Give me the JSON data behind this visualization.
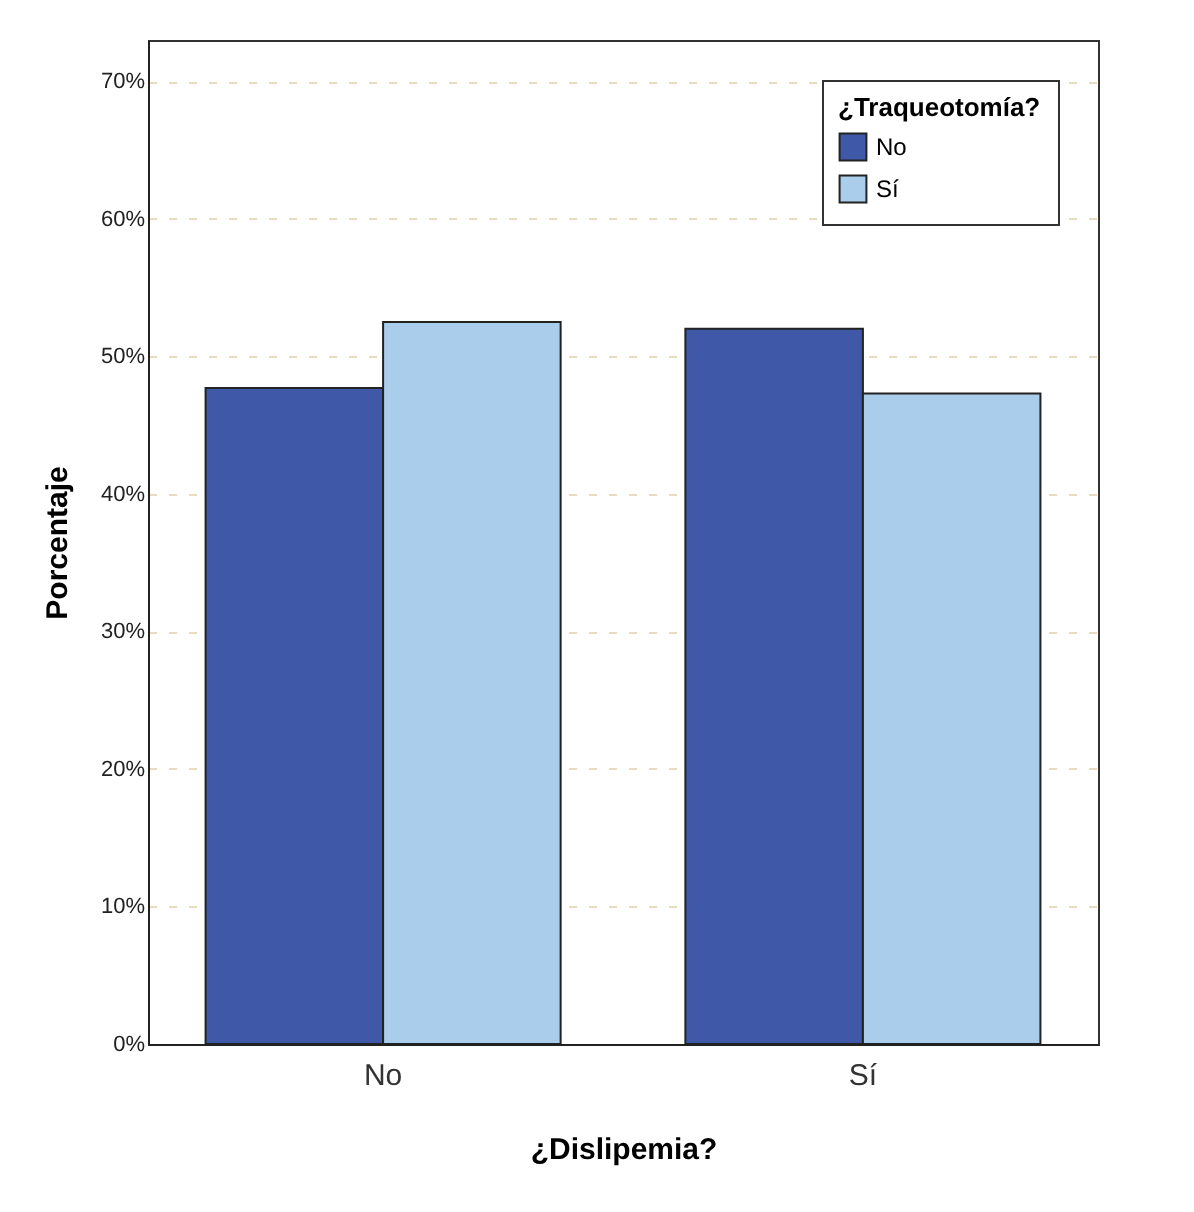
{
  "chart_data": {
    "type": "bar",
    "xlabel": "¿Dislipemia?",
    "ylabel": "Porcentaje",
    "legend_title": "¿Traqueotomía?",
    "categories": [
      "No",
      "Sí"
    ],
    "series": [
      {
        "name": "No",
        "color": "#3f58a8",
        "values": [
          47.7,
          52.0
        ]
      },
      {
        "name": "Sí",
        "color": "#abcdec",
        "values": [
          52.5,
          47.3
        ]
      }
    ],
    "ylim": [
      0,
      73
    ],
    "yticks": [
      {
        "value": 0,
        "label": "0%"
      },
      {
        "value": 10,
        "label": "10%"
      },
      {
        "value": 20,
        "label": "20%"
      },
      {
        "value": 30,
        "label": "30%"
      },
      {
        "value": 40,
        "label": "40%"
      },
      {
        "value": 50,
        "label": "50%"
      },
      {
        "value": 60,
        "label": "60%"
      },
      {
        "value": 70,
        "label": "70%"
      }
    ],
    "grid": "y",
    "legend": "top right"
  }
}
